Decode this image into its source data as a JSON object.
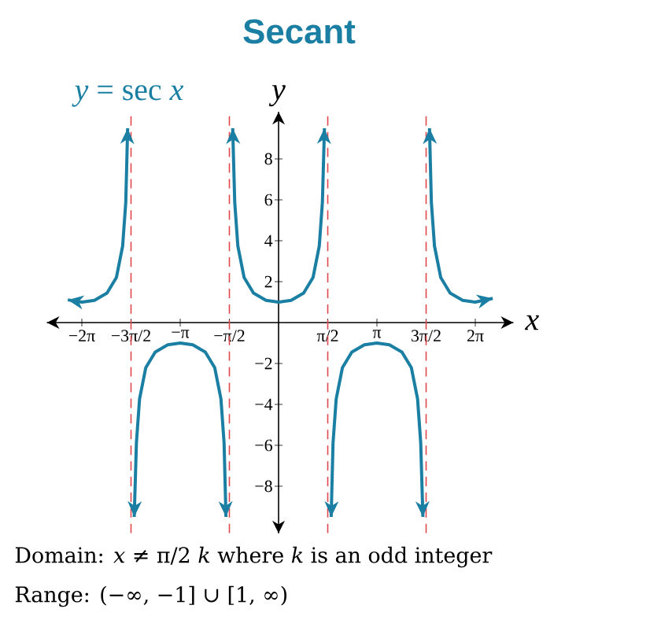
{
  "chart_data": {
    "type": "line",
    "title": "Secant",
    "xlabel": "x",
    "ylabel": "y",
    "xlim": [
      -7.4,
      7.5
    ],
    "ylim": [
      -10.3,
      10.3
    ],
    "xticks": [
      {
        "value": -6.2832,
        "label": "−2π"
      },
      {
        "value": -4.7124,
        "label": "−3π/2"
      },
      {
        "value": -3.1416,
        "label": "−π"
      },
      {
        "value": -1.5708,
        "label": "−π/2"
      },
      {
        "value": 1.5708,
        "label": "π/2"
      },
      {
        "value": 3.1416,
        "label": "π"
      },
      {
        "value": 4.7124,
        "label": "3π/2"
      },
      {
        "value": 6.2832,
        "label": "2π"
      }
    ],
    "yticks": [
      {
        "value": -8,
        "label": "−8"
      },
      {
        "value": -6,
        "label": "−6"
      },
      {
        "value": -4,
        "label": "−4"
      },
      {
        "value": -2,
        "label": "−2"
      },
      2,
      4,
      6,
      8
    ],
    "series": [
      {
        "name": "*y* = sec *x*",
        "color": "#1a7fa3",
        "x": [
          -6.73,
          -6.28,
          -5.88,
          -5.48,
          -5.18,
          -4.98,
          -4.88,
          -4.82,
          -4.71,
          -4.61,
          -4.54,
          -4.44,
          -4.24,
          -3.94,
          -3.54,
          -3.14,
          -2.74,
          -2.34,
          -2.04,
          -1.84,
          -1.74,
          -1.68,
          -1.57,
          -1.465,
          -1.4,
          -1.3,
          -1.1,
          -0.8,
          -0.4,
          0,
          0.4,
          0.8,
          1.1,
          1.3,
          1.4,
          1.465,
          1.57,
          1.68,
          1.74,
          1.84,
          2.04,
          2.34,
          2.74,
          3.14,
          3.54,
          3.94,
          4.24,
          4.44,
          4.54,
          4.61,
          4.71,
          4.82,
          4.88,
          4.98,
          5.18,
          5.48,
          5.88,
          6.28,
          6.84
        ],
        "values": [
          1.11,
          1,
          1.09,
          1.44,
          2.2,
          3.74,
          5.88,
          9.5,
          null,
          -9.5,
          -5.88,
          -3.74,
          -2.2,
          -1.44,
          -1.09,
          -1,
          -1.09,
          -1.44,
          -2.2,
          -3.74,
          -5.88,
          -9.5,
          null,
          9.5,
          5.88,
          3.74,
          2.2,
          1.44,
          1.09,
          1,
          1.09,
          1.44,
          2.2,
          3.74,
          5.88,
          9.5,
          null,
          -9.5,
          -5.88,
          -3.74,
          -2.2,
          -1.44,
          -1.09,
          -1,
          -1.09,
          -1.44,
          -2.2,
          -3.74,
          -5.88,
          -9.5,
          null,
          9.5,
          5.88,
          3.74,
          2.2,
          1.44,
          1.09,
          1,
          1.18
        ]
      }
    ],
    "ref_lines": [
      {
        "axis": "x",
        "value": -4.7124,
        "color": "#e0474c",
        "line_style": "dashed"
      },
      {
        "axis": "x",
        "value": -1.5708,
        "color": "#e0474c",
        "line_style": "dashed"
      },
      {
        "axis": "x",
        "value": 1.5708,
        "color": "#e0474c",
        "line_style": "dashed"
      },
      {
        "axis": "x",
        "value": 4.7124,
        "color": "#e0474c",
        "line_style": "dashed"
      }
    ],
    "annotations": [
      "Domain: *x* ≠ π/2 *k* where *k* is an odd integer",
      "Range: (−∞, −1] ∪ [1, ∞)"
    ],
    "line_style": "solid"
  }
}
